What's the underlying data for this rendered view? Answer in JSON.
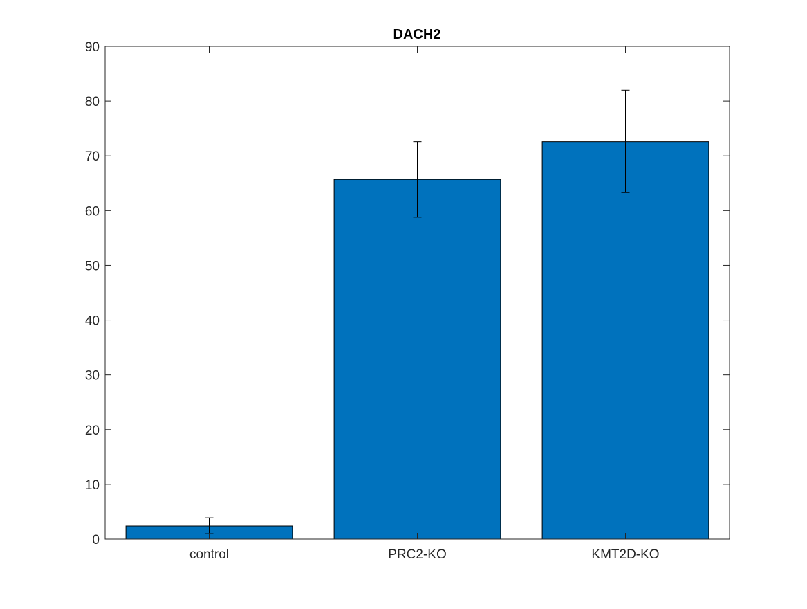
{
  "chart_data": {
    "type": "bar",
    "title": "DACH2",
    "xlabel": "",
    "ylabel": "",
    "categories": [
      "control",
      "PRC2-KO",
      "KMT2D-KO"
    ],
    "values": [
      2.4,
      65.7,
      72.6
    ],
    "error_bars": [
      {
        "low": 1.0,
        "high": 3.9
      },
      {
        "low": 58.8,
        "high": 72.6
      },
      {
        "low": 63.3,
        "high": 82.0
      }
    ],
    "ylim": [
      0,
      90
    ],
    "yticks": [
      0,
      10,
      20,
      30,
      40,
      50,
      60,
      70,
      80,
      90
    ],
    "grid": false,
    "legend": "none",
    "colors": {
      "bar_fill": "#0072bd",
      "bar_edge": "#000000",
      "axes": "#262626",
      "error_bar": "#000000"
    }
  }
}
